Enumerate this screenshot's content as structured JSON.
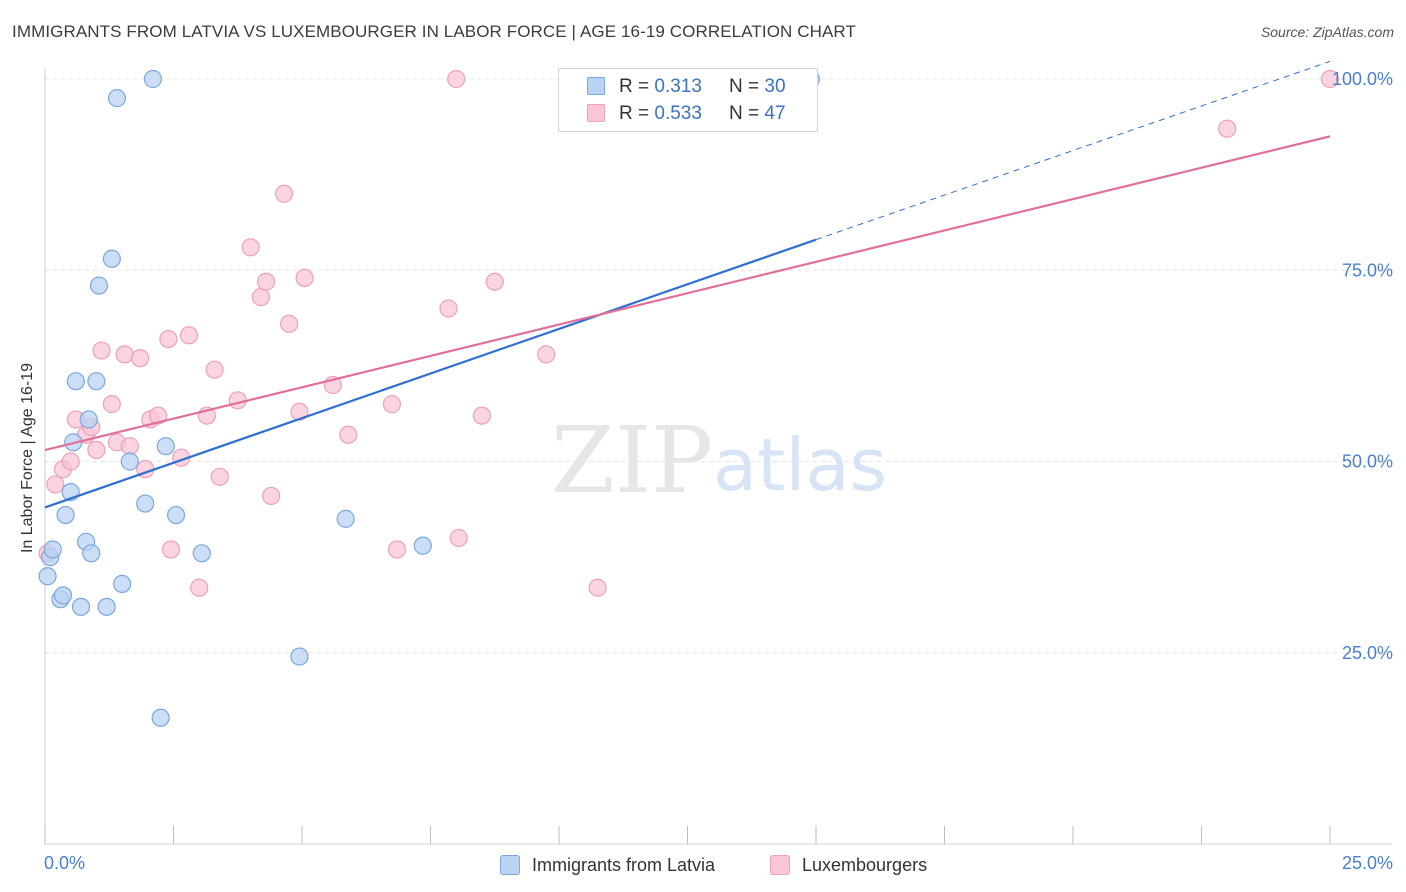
{
  "title": "IMMIGRANTS FROM LATVIA VS LUXEMBOURGER IN LABOR FORCE | AGE 16-19 CORRELATION CHART",
  "source": "Source: ZipAtlas.com",
  "watermark": {
    "zip": "ZIP",
    "atlas": "atlas"
  },
  "legend_top": {
    "rows": [
      {
        "r_label": "R = ",
        "r_value": "0.313",
        "n_label": "N = ",
        "n_value": "30"
      },
      {
        "r_label": "R = ",
        "r_value": "0.533",
        "n_label": "N = ",
        "n_value": "47"
      }
    ]
  },
  "legend_bottom": {
    "items": [
      {
        "label": "Immigrants from Latvia"
      },
      {
        "label": "Luxembourgers"
      }
    ]
  },
  "colors": {
    "blue_fill": "#b9d3f3",
    "blue_stroke": "#7aa7e0",
    "blue_line": "#2f6fd0",
    "pink_fill": "#f8c6d5",
    "pink_stroke": "#eea0ba",
    "pink_line": "#e0709a",
    "tick_label": "#4a7fcf",
    "grid": "#e4e4e4"
  },
  "chart_data": {
    "type": "scatter",
    "title": "IMMIGRANTS FROM LATVIA VS LUXEMBOURGER IN LABOR FORCE | AGE 16-19 CORRELATION CHART",
    "xlabel": "",
    "ylabel": "In Labor Force | Age 16-19",
    "xlim": [
      0,
      25
    ],
    "ylim": [
      0,
      102
    ],
    "x_tick_labels": [
      {
        "value": 0,
        "label": "0.0%"
      },
      {
        "value": 25,
        "label": "25.0%"
      }
    ],
    "y_tick_labels": [
      {
        "value": 25,
        "label": "25.0%"
      },
      {
        "value": 50,
        "label": "50.0%"
      },
      {
        "value": 75,
        "label": "75.0%"
      },
      {
        "value": 100,
        "label": "100.0%"
      }
    ],
    "x_minor_ticks": [
      0,
      2.5,
      5,
      7.5,
      10,
      12.5,
      15,
      17.5,
      20,
      22.5,
      25
    ],
    "grid": true,
    "series": [
      {
        "name": "Immigrants from Latvia",
        "r": 0.313,
        "n": 30,
        "points": [
          [
            0.05,
            35.0
          ],
          [
            0.1,
            37.5
          ],
          [
            0.15,
            38.5
          ],
          [
            0.3,
            32.0
          ],
          [
            0.35,
            32.5
          ],
          [
            0.4,
            43.0
          ],
          [
            0.5,
            46.0
          ],
          [
            0.55,
            52.5
          ],
          [
            0.6,
            60.5
          ],
          [
            0.7,
            31.0
          ],
          [
            0.8,
            39.5
          ],
          [
            0.85,
            55.5
          ],
          [
            0.9,
            38.0
          ],
          [
            1.0,
            60.5
          ],
          [
            1.05,
            73.0
          ],
          [
            1.2,
            31.0
          ],
          [
            1.3,
            76.5
          ],
          [
            1.4,
            97.5
          ],
          [
            1.5,
            34.0
          ],
          [
            1.65,
            50.0
          ],
          [
            1.95,
            44.5
          ],
          [
            2.1,
            100.0
          ],
          [
            2.25,
            16.5
          ],
          [
            2.35,
            52.0
          ],
          [
            2.55,
            43.0
          ],
          [
            3.05,
            38.0
          ],
          [
            4.95,
            24.5
          ],
          [
            5.85,
            42.5
          ],
          [
            7.35,
            39.0
          ],
          [
            14.9,
            100.0
          ]
        ],
        "trend": {
          "x1": 0,
          "y1": 44.0,
          "x2": 15.0,
          "y2": 79.0,
          "dashed_x2": 25.0,
          "dashed_y2": 102.3
        }
      },
      {
        "name": "Luxembourgers",
        "r": 0.533,
        "n": 47,
        "points": [
          [
            0.05,
            38.0
          ],
          [
            0.2,
            47.0
          ],
          [
            0.35,
            49.0
          ],
          [
            0.5,
            50.0
          ],
          [
            0.6,
            55.5
          ],
          [
            0.8,
            53.5
          ],
          [
            0.9,
            54.5
          ],
          [
            1.0,
            51.5
          ],
          [
            1.1,
            64.5
          ],
          [
            1.3,
            57.5
          ],
          [
            1.4,
            52.5
          ],
          [
            1.55,
            64.0
          ],
          [
            1.65,
            52.0
          ],
          [
            1.85,
            63.5
          ],
          [
            1.95,
            49.0
          ],
          [
            2.05,
            55.5
          ],
          [
            2.2,
            56.0
          ],
          [
            2.4,
            66.0
          ],
          [
            2.45,
            38.5
          ],
          [
            2.65,
            50.5
          ],
          [
            2.8,
            66.5
          ],
          [
            3.0,
            33.5
          ],
          [
            3.15,
            56.0
          ],
          [
            3.3,
            62.0
          ],
          [
            3.4,
            48.0
          ],
          [
            3.75,
            58.0
          ],
          [
            4.0,
            78.0
          ],
          [
            4.2,
            71.5
          ],
          [
            4.3,
            73.5
          ],
          [
            4.4,
            45.5
          ],
          [
            4.65,
            85.0
          ],
          [
            4.75,
            68.0
          ],
          [
            4.95,
            56.5
          ],
          [
            5.05,
            74.0
          ],
          [
            5.6,
            60.0
          ],
          [
            5.9,
            53.5
          ],
          [
            6.75,
            57.5
          ],
          [
            6.85,
            38.5
          ],
          [
            7.85,
            70.0
          ],
          [
            8.05,
            40.0
          ],
          [
            8.0,
            100.0
          ],
          [
            8.5,
            56.0
          ],
          [
            8.75,
            73.5
          ],
          [
            9.75,
            64.0
          ],
          [
            10.75,
            33.5
          ],
          [
            23.0,
            93.5
          ],
          [
            25.0,
            100.0
          ]
        ],
        "trend": {
          "x1": 0,
          "y1": 51.5,
          "x2": 25.0,
          "y2": 92.5
        }
      }
    ]
  }
}
